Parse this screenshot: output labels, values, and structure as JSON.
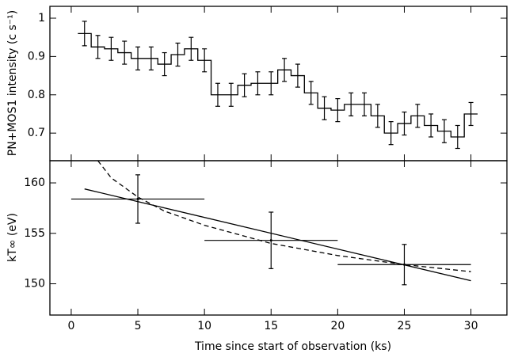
{
  "chart_data": [
    {
      "type": "step",
      "ylabel": "PN+MOS1 intensity (c s⁻¹)",
      "x": [
        1,
        2,
        3,
        4,
        5,
        6,
        7,
        8,
        9,
        10,
        11,
        12,
        13,
        14,
        15,
        16,
        17,
        18,
        19,
        20,
        21,
        22,
        23,
        24,
        25,
        26,
        27,
        28,
        29,
        30
      ],
      "values": [
        0.96,
        0.925,
        0.92,
        0.91,
        0.895,
        0.895,
        0.88,
        0.905,
        0.92,
        0.89,
        0.8,
        0.8,
        0.825,
        0.83,
        0.83,
        0.865,
        0.85,
        0.805,
        0.765,
        0.76,
        0.775,
        0.775,
        0.745,
        0.7,
        0.725,
        0.745,
        0.72,
        0.705,
        0.69,
        0.75
      ],
      "errors": [
        0.032,
        0.03,
        0.03,
        0.03,
        0.03,
        0.03,
        0.03,
        0.03,
        0.03,
        0.03,
        0.03,
        0.03,
        0.03,
        0.03,
        0.03,
        0.03,
        0.03,
        0.03,
        0.03,
        0.03,
        0.03,
        0.03,
        0.03,
        0.03,
        0.03,
        0.03,
        0.03,
        0.03,
        0.03,
        0.03
      ],
      "xlim": [
        -1.6,
        32.7
      ],
      "ylim": [
        0.628,
        1.031
      ],
      "yticks": [
        0.7,
        0.8,
        0.9,
        1
      ],
      "color": "#000000"
    },
    {
      "type": "scatter",
      "xlabel": "Time since start of observation (ks)",
      "ylabel": "kT∞ (eV)",
      "x": [
        5,
        15,
        25
      ],
      "xerr": [
        5,
        5,
        5
      ],
      "values": [
        158.4,
        154.3,
        151.9
      ],
      "errors": [
        2.4,
        2.8,
        2.0
      ],
      "lines": [
        {
          "style": "solid",
          "x": [
            1,
            30
          ],
          "values": [
            159.4,
            150.3
          ]
        },
        {
          "style": "dashed",
          "x": [
            2,
            3,
            5,
            7,
            10,
            15,
            20,
            25,
            30
          ],
          "values": [
            162.2,
            160.5,
            158.6,
            157.2,
            155.8,
            154.0,
            152.8,
            151.9,
            151.2
          ]
        }
      ],
      "xlim": [
        -1.6,
        32.7
      ],
      "ylim": [
        146.9,
        162.2
      ],
      "xticks": [
        0,
        5,
        10,
        15,
        20,
        25,
        30
      ],
      "yticks": [
        150,
        155,
        160
      ],
      "color": "#000000"
    }
  ]
}
